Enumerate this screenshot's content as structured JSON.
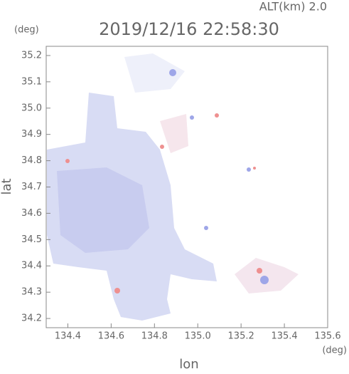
{
  "chart_data": {
    "type": "image",
    "altitude_label": "ALT(km) 2.0",
    "title": "2019/12/16 22:58:30",
    "y_unit": "(deg)",
    "x_unit": "(deg)",
    "ylabel": "lat",
    "xlabel": "lon",
    "xlim": [
      134.3,
      135.6
    ],
    "ylim": [
      34.165,
      35.235
    ],
    "xticks": [
      134.4,
      134.6,
      134.8,
      {
        "value": 135.0,
        "label": "135.0"
      },
      135.2,
      135.4,
      135.6
    ],
    "yticks": [
      34.2,
      34.3,
      34.4,
      34.5,
      34.6,
      34.7,
      34.8,
      34.9,
      {
        "value": 35.0,
        "label": "35.0"
      },
      35.1,
      35.2
    ]
  }
}
